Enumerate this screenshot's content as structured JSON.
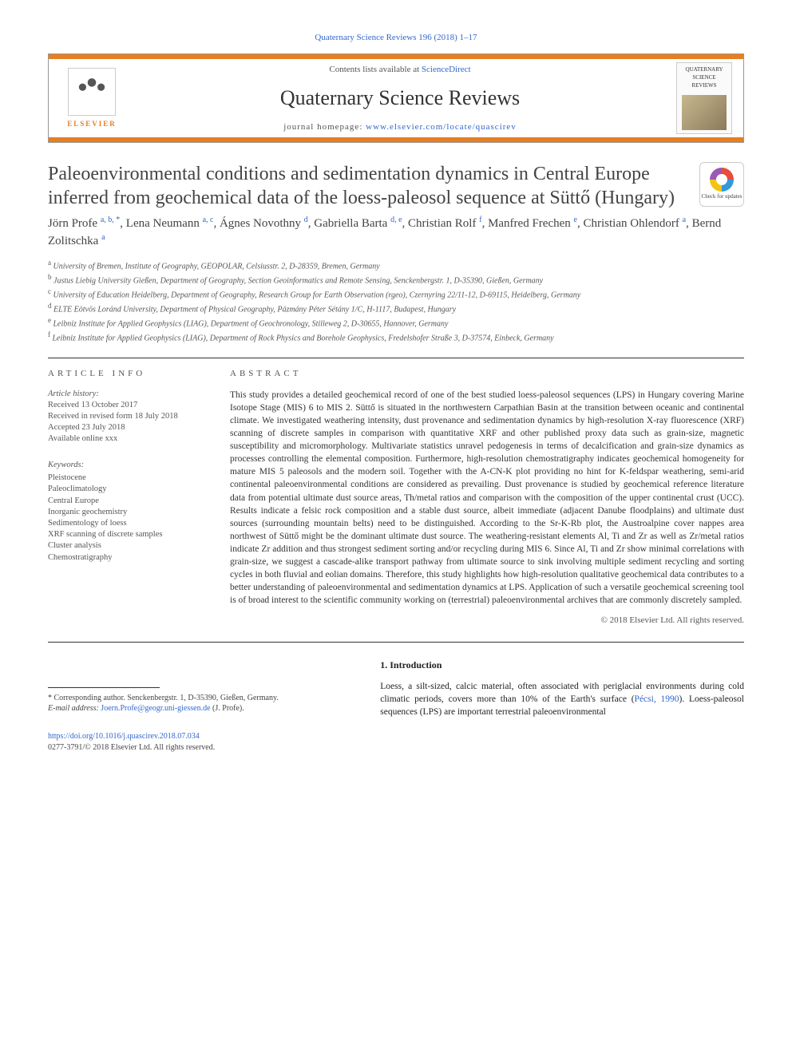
{
  "top_citation": "Quaternary Science Reviews 196 (2018) 1–17",
  "header": {
    "contents_line_prefix": "Contents lists available at ",
    "contents_link": "ScienceDirect",
    "journal_name": "Quaternary Science Reviews",
    "homepage_prefix": "journal homepage: ",
    "homepage_url": "www.elsevier.com/locate/quascirev",
    "publisher_logo_text": "ELSEVIER",
    "cover_label": "QUATERNARY SCIENCE REVIEWS"
  },
  "check_updates_label": "Check for updates",
  "title": "Paleoenvironmental conditions and sedimentation dynamics in Central Europe inferred from geochemical data of the loess-paleosol sequence at Süttő (Hungary)",
  "authors_html": "Jörn Profe <sup>a, b, *</sup>, Lena Neumann <sup>a, c</sup>, Ágnes Novothny <sup>d</sup>, Gabriella Barta <sup>d, e</sup>, Christian Rolf <sup>f</sup>, Manfred Frechen <sup>e</sup>, Christian Ohlendorf <sup>a</sup>, Bernd Zolitschka <sup>a</sup>",
  "affiliations": [
    {
      "key": "a",
      "text": "University of Bremen, Institute of Geography, GEOPOLAR, Celsiusstr. 2, D-28359, Bremen, Germany"
    },
    {
      "key": "b",
      "text": "Justus Liebig University Gießen, Department of Geography, Section Geoinformatics and Remote Sensing, Senckenbergstr. 1, D-35390, Gießen, Germany"
    },
    {
      "key": "c",
      "text": "University of Education Heidelberg, Department of Geography, Research Group for Earth Observation (rgeo), Czernyring 22/11-12, D-69115, Heidelberg, Germany"
    },
    {
      "key": "d",
      "text": "ELTE Eötvös Loránd University, Department of Physical Geography, Pázmány Péter Sétány 1/C, H-1117, Budapest, Hungary"
    },
    {
      "key": "e",
      "text": "Leibniz Institute for Applied Geophysics (LIAG), Department of Geochronology, Stilleweg 2, D-30655, Hannover, Germany"
    },
    {
      "key": "f",
      "text": "Leibniz Institute for Applied Geophysics (LIAG), Department of Rock Physics and Borehole Geophysics, Fredelshofer Straße 3, D-37574, Einbeck, Germany"
    }
  ],
  "article_info_head": "ARTICLE INFO",
  "abstract_head": "ABSTRACT",
  "history": {
    "label": "Article history:",
    "received": "Received 13 October 2017",
    "revised": "Received in revised form 18 July 2018",
    "accepted": "Accepted 23 July 2018",
    "online": "Available online xxx"
  },
  "keywords_label": "Keywords:",
  "keywords": [
    "Pleistocene",
    "Paleoclimatology",
    "Central Europe",
    "Inorganic geochemistry",
    "Sedimentology of loess",
    "XRF scanning of discrete samples",
    "Cluster analysis",
    "Chemostratigraphy"
  ],
  "abstract": "This study provides a detailed geochemical record of one of the best studied loess-paleosol sequences (LPS) in Hungary covering Marine Isotope Stage (MIS) 6 to MIS 2. Süttő is situated in the northwestern Carpathian Basin at the transition between oceanic and continental climate. We investigated weathering intensity, dust provenance and sedimentation dynamics by high-resolution X-ray fluorescence (XRF) scanning of discrete samples in comparison with quantitative XRF and other published proxy data such as grain-size, magnetic susceptibility and micromorphology. Multivariate statistics unravel pedogenesis in terms of decalcification and grain-size dynamics as processes controlling the elemental composition. Furthermore, high-resolution chemostratigraphy indicates geochemical homogeneity for mature MIS 5 paleosols and the modern soil. Together with the A-CN-K plot providing no hint for K-feldspar weathering, semi-arid continental paleoenvironmental conditions are considered as prevailing. Dust provenance is studied by geochemical reference literature data from potential ultimate dust source areas, Th/metal ratios and comparison with the composition of the upper continental crust (UCC). Results indicate a felsic rock composition and a stable dust source, albeit immediate (adjacent Danube floodplains) and ultimate dust sources (surrounding mountain belts) need to be distinguished. According to the Sr-K-Rb plot, the Austroalpine cover nappes area northwest of Süttő might be the dominant ultimate dust source. The weathering-resistant elements Al, Ti and Zr as well as Zr/metal ratios indicate Zr addition and thus strongest sediment sorting and/or recycling during MIS 6. Since Al, Ti and Zr show minimal correlations with grain-size, we suggest a cascade-alike transport pathway from ultimate source to sink involving multiple sediment recycling and sorting cycles in both fluvial and eolian domains. Therefore, this study highlights how high-resolution qualitative geochemical data contributes to a better understanding of paleoenvironmental and sedimentation dynamics at LPS. Application of such a versatile geochemical screening tool is of broad interest to the scientific community working on (terrestrial) paleoenvironmental archives that are commonly discretely sampled.",
  "copyright_line": "© 2018 Elsevier Ltd. All rights reserved.",
  "intro": {
    "heading": "1. Introduction",
    "text_prefix": "Loess, a silt-sized, calcic material, often associated with periglacial environments during cold climatic periods, covers more than 10% of the Earth's surface (",
    "ref": "Pécsi, 1990",
    "text_suffix": "). Loess-paleosol sequences (LPS) are important terrestrial paleoenvironmental"
  },
  "correspondence": {
    "line1": "* Corresponding author. Senckenbergstr. 1, D-35390, Gießen, Germany.",
    "email_label": "E-mail address: ",
    "email": "Joern.Profe@geogr.uni-giessen.de",
    "email_suffix": " (J. Profe)."
  },
  "footer": {
    "doi": "https://doi.org/10.1016/j.quascirev.2018.07.034",
    "issn_line": "0277-3791/© 2018 Elsevier Ltd. All rights reserved."
  },
  "colors": {
    "accent": "#e67e22",
    "link": "#3366cc",
    "text": "#333333",
    "muted": "#555555",
    "rule": "#333333"
  }
}
